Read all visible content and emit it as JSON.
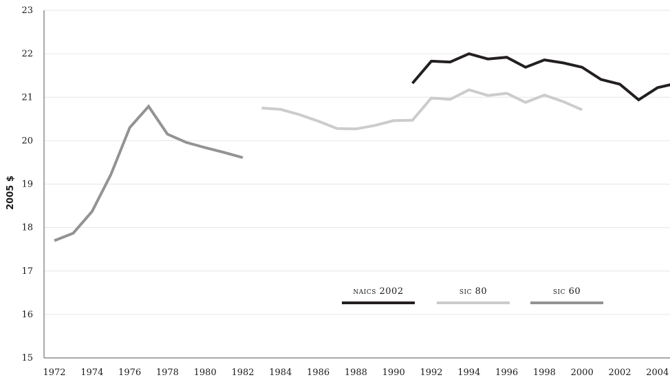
{
  "chart_data": {
    "type": "line",
    "title": "",
    "xlabel": "",
    "ylabel": "2005 $",
    "ylim": [
      15,
      23
    ],
    "xlim": [
      1972,
      2005
    ],
    "yticks": [
      "15",
      "16",
      "17",
      "18",
      "19",
      "20",
      "21",
      "22",
      "23"
    ],
    "xticks": [
      "1972",
      "1974",
      "1976",
      "1978",
      "1980",
      "1982",
      "1984",
      "1986",
      "1988",
      "1990",
      "1992",
      "1994",
      "1996",
      "1998",
      "2000",
      "2002",
      "2004"
    ],
    "grid": true,
    "legend_position": "bottom-right",
    "series": [
      {
        "name": "naics 2002",
        "color": "#231f20",
        "x": [
          1991,
          1992,
          1993,
          1994,
          1995,
          1996,
          1997,
          1998,
          1999,
          2000,
          2001,
          2002,
          2003,
          2004,
          2005
        ],
        "values": [
          21.32,
          21.83,
          21.81,
          22.0,
          21.88,
          21.92,
          21.69,
          21.86,
          21.79,
          21.69,
          21.41,
          21.3,
          20.94,
          21.22,
          21.32
        ]
      },
      {
        "name": "sic 80",
        "color": "#cccccc",
        "x": [
          1983,
          1984,
          1985,
          1986,
          1987,
          1988,
          1989,
          1990,
          1991,
          1992,
          1993,
          1994,
          1995,
          1996,
          1997,
          1998,
          1999,
          2000
        ],
        "values": [
          20.75,
          20.72,
          20.6,
          20.45,
          20.28,
          20.27,
          20.35,
          20.46,
          20.47,
          20.98,
          20.95,
          21.17,
          21.04,
          21.09,
          20.88,
          21.05,
          20.9,
          20.71
        ]
      },
      {
        "name": "sic 60",
        "color": "#939393",
        "x": [
          1972,
          1973,
          1974,
          1975,
          1976,
          1977,
          1978,
          1979,
          1980,
          1981,
          1982
        ],
        "values": [
          17.7,
          17.87,
          18.37,
          19.22,
          20.3,
          20.79,
          20.15,
          19.96,
          19.84,
          19.73,
          19.61
        ]
      }
    ]
  }
}
